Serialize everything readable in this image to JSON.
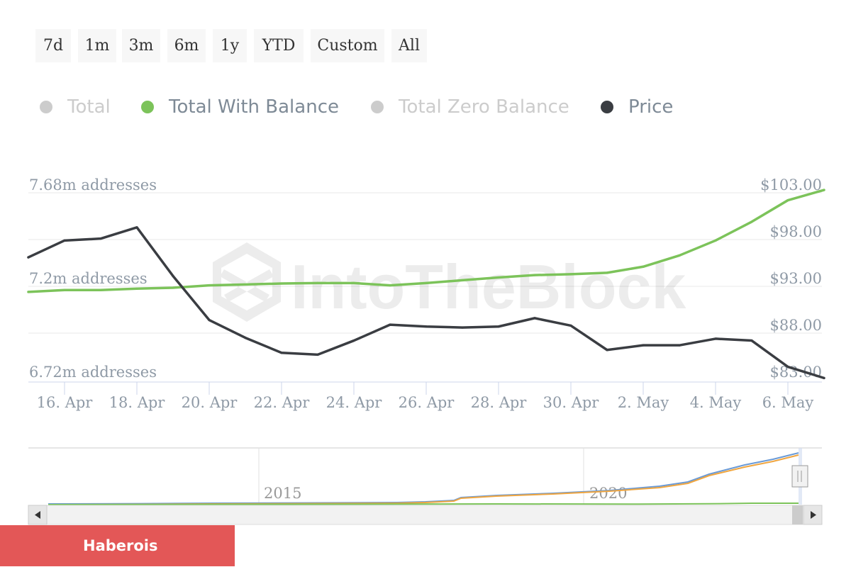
{
  "range_buttons": [
    "7d",
    "1m",
    "3m",
    "6m",
    "1y",
    "YTD",
    "Custom",
    "All"
  ],
  "legend": [
    {
      "label": "Total",
      "color": "#cccccc",
      "active": false
    },
    {
      "label": "Total With Balance",
      "color": "#7cc35a",
      "active": true
    },
    {
      "label": "Total Zero Balance",
      "color": "#cccccc",
      "active": false
    },
    {
      "label": "Price",
      "color": "#3a3d42",
      "active": true
    }
  ],
  "colors": {
    "active_text": "#7e8a96",
    "inactive_text": "#cccccc",
    "axis_text": "#8f9aa6",
    "grid": "#e8e8e8",
    "balance_line": "#7cc35a",
    "price_line": "#3a3d42",
    "navigator_blue": "#6a9ad6",
    "navigator_orange": "#f0a640",
    "navigator_green": "#7cc35a",
    "bottom_label_bg": "#e35757"
  },
  "watermark": "IntoTheBlock",
  "chart_data": {
    "type": "line",
    "x": [
      "15. Apr",
      "16. Apr",
      "17. Apr",
      "18. Apr",
      "19. Apr",
      "20. Apr",
      "21. Apr",
      "22. Apr",
      "23. Apr",
      "24. Apr",
      "25. Apr",
      "26. Apr",
      "27. Apr",
      "28. Apr",
      "29. Apr",
      "30. Apr",
      "1. May",
      "2. May",
      "3. May",
      "4. May",
      "5. May",
      "6. May",
      "7. May"
    ],
    "x_tick_labels": [
      "16. Apr",
      "18. Apr",
      "20. Apr",
      "22. Apr",
      "24. Apr",
      "26. Apr",
      "28. Apr",
      "30. Apr",
      "2. May",
      "4. May",
      "6. May"
    ],
    "y_left_tick_labels": [
      "6.72m addresses",
      "7.2m addresses",
      "7.68m addresses"
    ],
    "y_right_tick_labels": [
      "$83.00",
      "$88.00",
      "$93.00",
      "$98.00",
      "$103.00"
    ],
    "ylim_right": [
      83,
      103
    ],
    "grid": true,
    "legend_position": "top",
    "series": [
      {
        "name": "Total With Balance",
        "axis": "right",
        "color": "#7cc35a",
        "values": [
          92.4,
          92.6,
          92.6,
          92.75,
          92.85,
          93.1,
          93.2,
          93.3,
          93.35,
          93.35,
          93.1,
          93.35,
          93.65,
          93.95,
          94.2,
          94.3,
          94.45,
          95.1,
          96.3,
          97.9,
          99.9,
          102.2,
          103.3
        ]
      },
      {
        "name": "Price",
        "axis": "right",
        "color": "#3a3d42",
        "values": [
          96.1,
          97.9,
          98.1,
          99.3,
          94.1,
          89.4,
          87.5,
          85.9,
          85.7,
          87.2,
          88.9,
          88.7,
          88.6,
          88.7,
          89.6,
          88.8,
          86.2,
          86.7,
          86.7,
          87.4,
          87.2,
          84.4,
          83.2
        ]
      }
    ],
    "navigator": {
      "x_tick_labels": [
        "2015",
        "2020"
      ]
    }
  },
  "bottom_label": "Haberois"
}
